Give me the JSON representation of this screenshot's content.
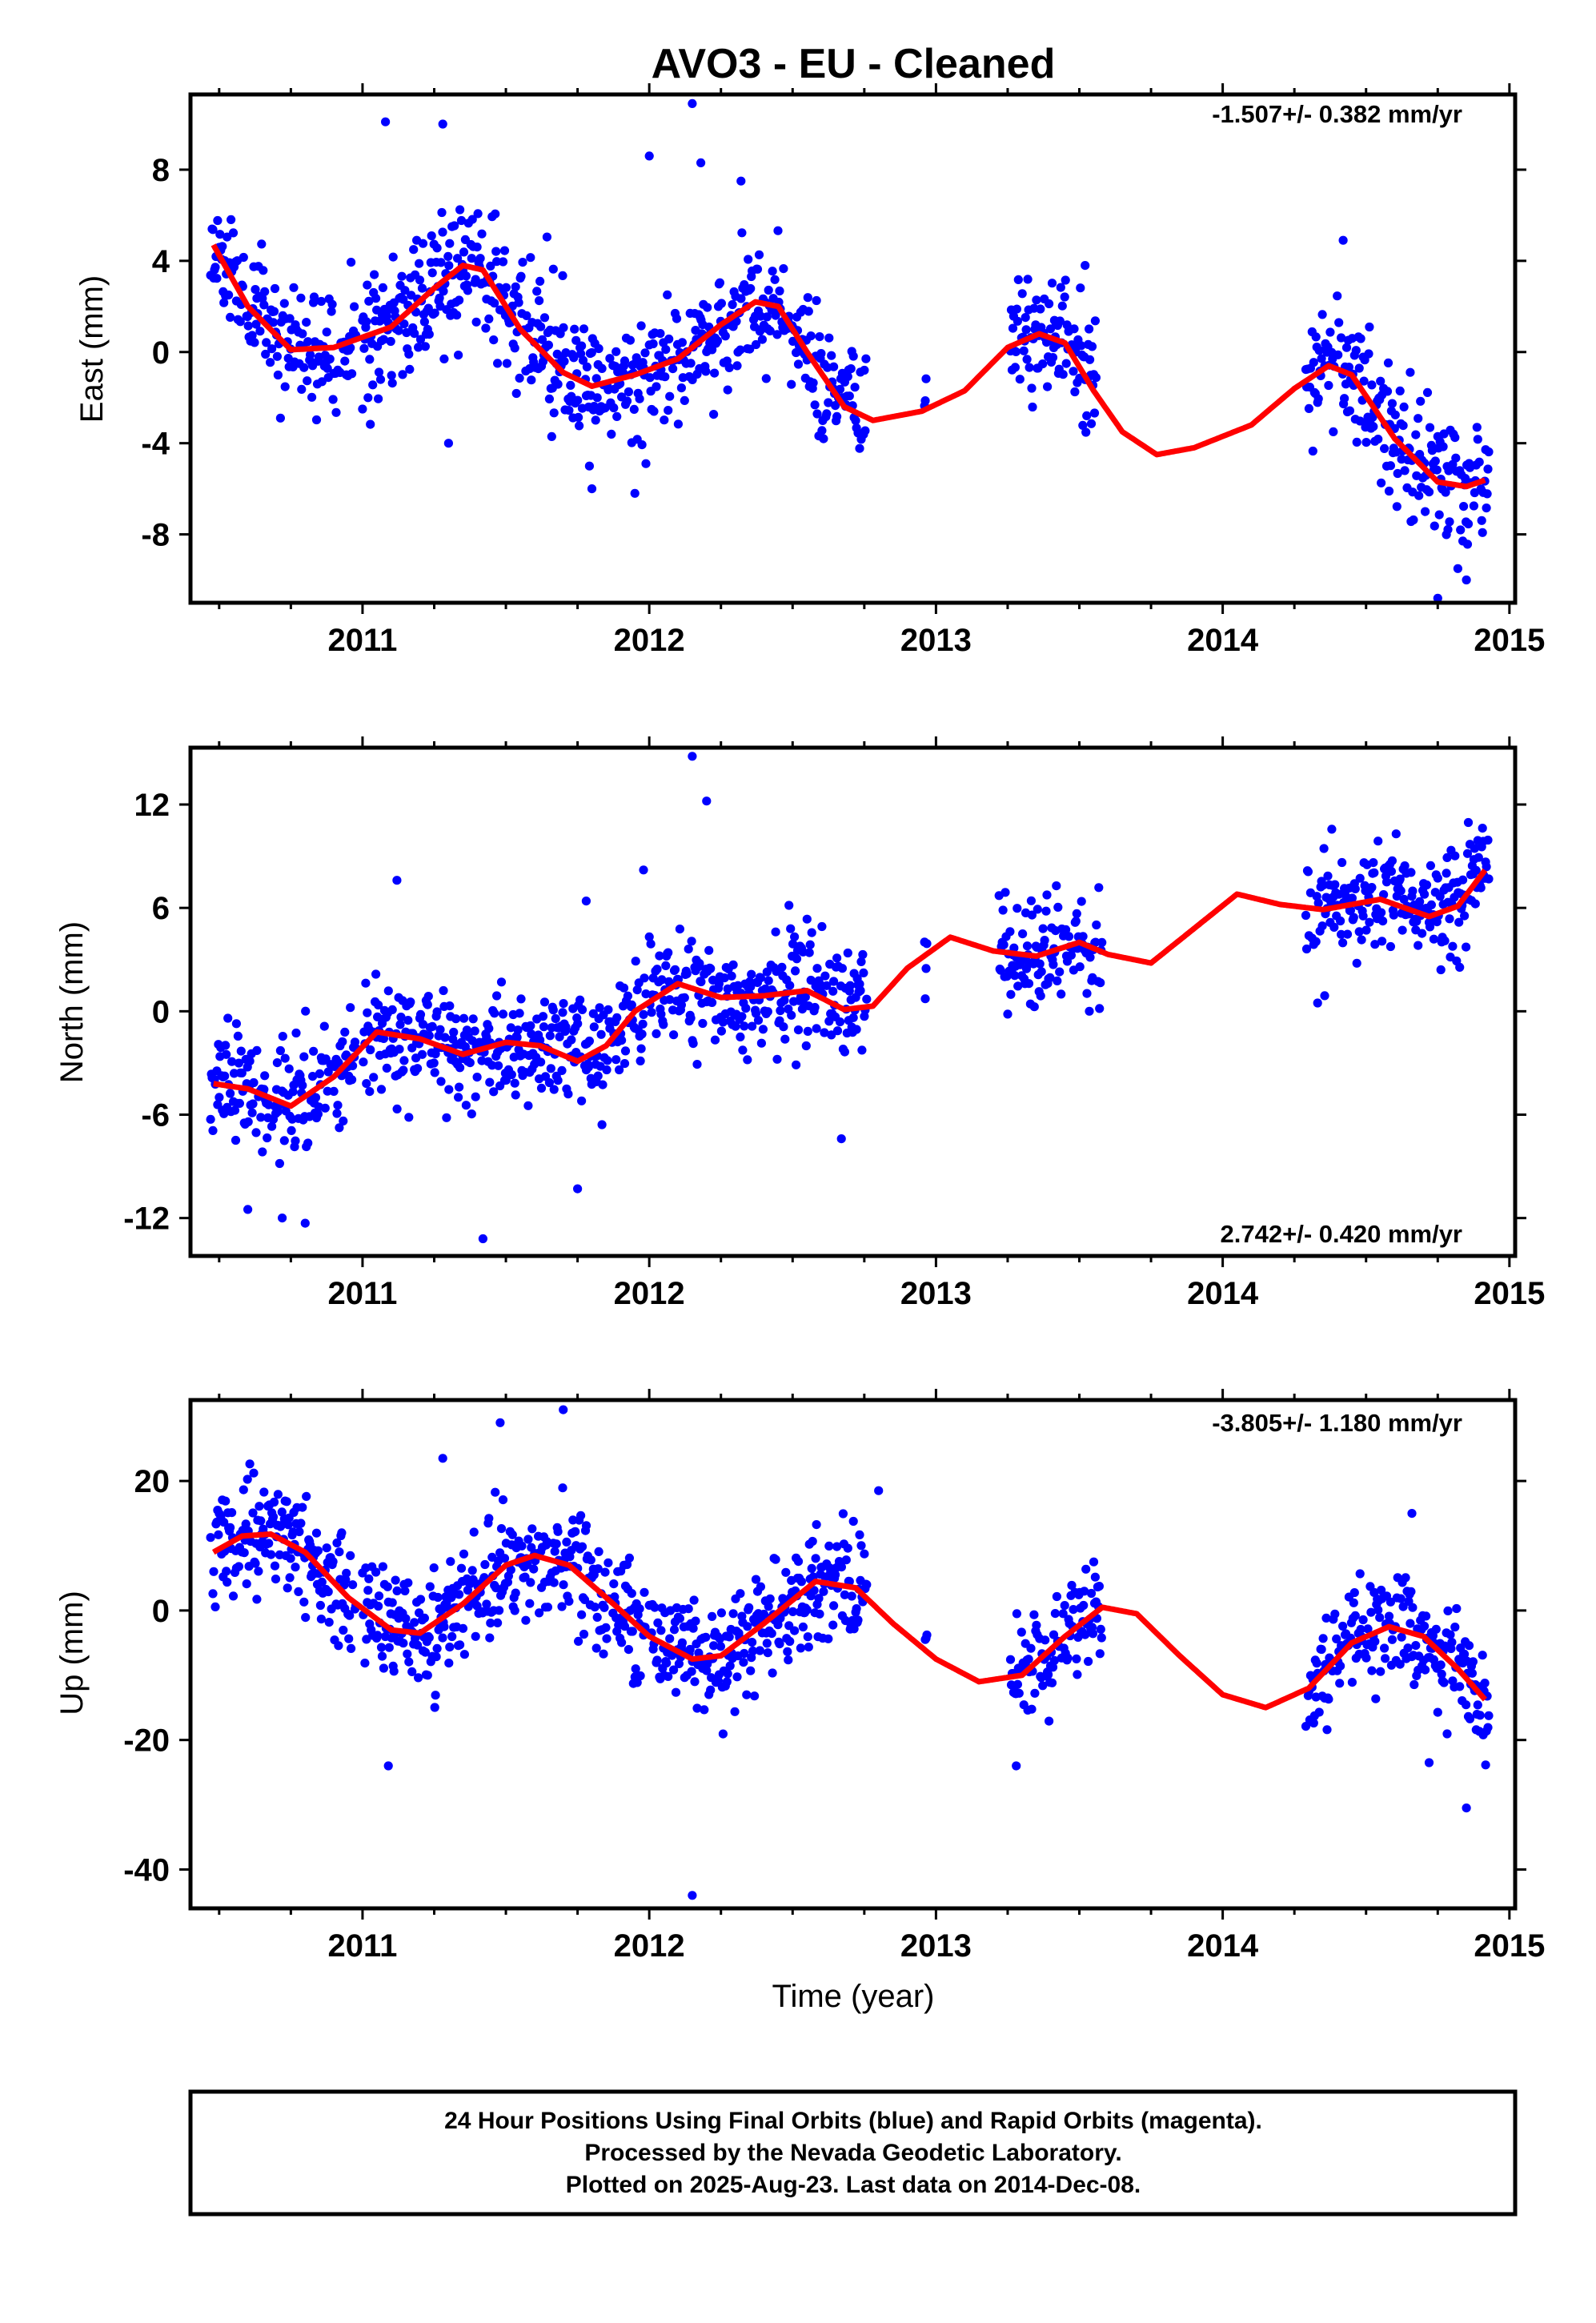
{
  "title": "AVO3  - EU - Cleaned",
  "colors": {
    "points": "#0000ff",
    "fit": "#ff0000",
    "frame": "#000000"
  },
  "footer": {
    "line1": "24 Hour Positions Using Final Orbits (blue) and Rapid Orbits (magenta).",
    "line2": "Processed by the Nevada Geodetic Laboratory.",
    "line3": "Plotted on 2025-Aug-23. Last data on 2014-Dec-08."
  },
  "chart_data": [
    {
      "type": "scatter",
      "ylabel": "East (mm)",
      "xlabel": "",
      "rate": "-1.507+/- 0.382 mm/yr",
      "rate_position": "top-right",
      "xlim": [
        2010.4,
        2015.02
      ],
      "ylim": [
        -11,
        11.3
      ],
      "xticks": [
        "2011",
        "2012",
        "2013",
        "2014",
        "2015"
      ],
      "yticks": [
        "8",
        "4",
        "0",
        "-4",
        "-8"
      ],
      "ytick_values": [
        8,
        4,
        0,
        -4,
        -8
      ],
      "data_segments": [
        [
          2010.47,
          2010.98
        ],
        [
          2011.0,
          2011.99
        ],
        [
          2012.0,
          2012.76
        ],
        [
          2012.96,
          2012.97
        ],
        [
          2013.26,
          2013.56
        ],
        [
          2014.29,
          2014.93
        ]
      ],
      "fit_curve": {
        "x": [
          2010.48,
          2010.6,
          2010.75,
          2010.9,
          2011.1,
          2011.25,
          2011.35,
          2011.42,
          2011.55,
          2011.7,
          2011.8,
          2011.95,
          2012.1,
          2012.25,
          2012.37,
          2012.45,
          2012.55,
          2012.68,
          2012.78,
          2012.95,
          2013.1,
          2013.25,
          2013.36,
          2013.45,
          2013.55,
          2013.65,
          2013.77,
          2013.9,
          2014.1,
          2014.25,
          2014.37,
          2014.45,
          2014.6,
          2014.75,
          2014.85,
          2014.92
        ],
        "y": [
          4.7,
          2.0,
          0.1,
          0.2,
          1.1,
          2.8,
          3.8,
          3.6,
          1.0,
          -0.9,
          -1.5,
          -1.0,
          -0.3,
          1.2,
          2.2,
          2.0,
          0.0,
          -2.4,
          -3.0,
          -2.6,
          -1.7,
          0.2,
          0.8,
          0.4,
          -1.7,
          -3.5,
          -4.5,
          -4.2,
          -3.2,
          -1.6,
          -0.6,
          -1.0,
          -3.8,
          -5.7,
          -5.9,
          -5.6
        ]
      },
      "outliers": {
        "x": [
          2011.08,
          2011.28,
          2012.0,
          2012.15,
          2012.18,
          2011.3,
          2012.32,
          2011.8,
          2011.95,
          2014.42,
          2014.75,
          2014.82,
          2014.85,
          2013.52,
          2011.0
        ],
        "y": [
          10.1,
          10.0,
          8.6,
          10.9,
          8.3,
          -4.0,
          7.5,
          -6.0,
          -6.2,
          4.9,
          -10.8,
          -9.5,
          -10.0,
          3.8,
          -2.5
        ]
      },
      "scatter_sd": 1.4
    },
    {
      "type": "scatter",
      "ylabel": "North (mm)",
      "xlabel": "",
      "rate": "2.742+/- 0.420 mm/yr",
      "rate_position": "bottom-right",
      "xlim": [
        2010.4,
        2015.02
      ],
      "ylim": [
        -14.2,
        15.3
      ],
      "xticks": [
        "2011",
        "2012",
        "2013",
        "2014",
        "2015"
      ],
      "yticks": [
        "12",
        "6",
        "0",
        "-6",
        "-12"
      ],
      "ytick_values": [
        12,
        6,
        0,
        -6,
        -12
      ],
      "data_segments": [
        [
          2010.47,
          2010.98
        ],
        [
          2011.0,
          2011.99
        ],
        [
          2012.0,
          2012.76
        ],
        [
          2012.96,
          2012.97
        ],
        [
          2013.22,
          2013.58
        ],
        [
          2014.29,
          2014.93
        ]
      ],
      "fit_curve": {
        "x": [
          2010.48,
          2010.6,
          2010.75,
          2010.9,
          2011.05,
          2011.2,
          2011.35,
          2011.5,
          2011.62,
          2011.75,
          2011.85,
          2011.95,
          2012.1,
          2012.25,
          2012.4,
          2012.55,
          2012.68,
          2012.78,
          2012.9,
          2013.05,
          2013.2,
          2013.35,
          2013.5,
          2013.6,
          2013.75,
          2013.9,
          2014.05,
          2014.2,
          2014.35,
          2014.55,
          2014.72,
          2014.82,
          2014.92
        ],
        "y": [
          -4.2,
          -4.5,
          -5.5,
          -3.8,
          -1.2,
          -1.6,
          -2.5,
          -1.8,
          -2.0,
          -2.9,
          -2.0,
          0.0,
          1.6,
          0.8,
          0.9,
          1.2,
          0.1,
          0.3,
          2.5,
          4.3,
          3.5,
          3.2,
          4.0,
          3.3,
          2.8,
          4.8,
          6.8,
          6.2,
          5.9,
          6.5,
          5.5,
          6.1,
          8.3
        ]
      },
      "outliers": {
        "x": [
          2012.15,
          2012.2,
          2011.42,
          2010.8,
          2010.72,
          2010.6,
          2011.12,
          2012.67,
          2011.75,
          2011.78,
          2011.98
        ],
        "y": [
          14.8,
          12.2,
          -13.2,
          -12.3,
          -12.0,
          -11.5,
          7.6,
          -7.4,
          -10.3,
          6.4,
          8.2
        ]
      },
      "scatter_sd": 1.6
    },
    {
      "type": "scatter",
      "ylabel": "Up (mm)",
      "xlabel": "Time (year)",
      "rate": "-3.805+/- 1.180 mm/yr",
      "rate_position": "top-right",
      "xlim": [
        2010.4,
        2015.02
      ],
      "ylim": [
        -46,
        32.5
      ],
      "xticks": [
        "2011",
        "2012",
        "2013",
        "2014",
        "2015"
      ],
      "yticks": [
        "20",
        "0",
        "-20",
        "-40"
      ],
      "ytick_values": [
        20,
        0,
        -20,
        -40
      ],
      "data_segments": [
        [
          2010.47,
          2010.98
        ],
        [
          2011.0,
          2011.99
        ],
        [
          2012.0,
          2012.76
        ],
        [
          2012.96,
          2012.97
        ],
        [
          2013.26,
          2013.58
        ],
        [
          2014.29,
          2014.93
        ]
      ],
      "fit_curve": {
        "x": [
          2010.48,
          2010.58,
          2010.68,
          2010.8,
          2010.95,
          2011.1,
          2011.2,
          2011.35,
          2011.5,
          2011.6,
          2011.72,
          2011.85,
          2012.0,
          2012.15,
          2012.25,
          2012.4,
          2012.58,
          2012.72,
          2012.85,
          2013.0,
          2013.15,
          2013.3,
          2013.45,
          2013.58,
          2013.7,
          2013.85,
          2014.0,
          2014.15,
          2014.3,
          2014.45,
          2014.58,
          2014.7,
          2014.82,
          2014.92
        ],
        "y": [
          9.0,
          11.5,
          11.8,
          9.0,
          2.0,
          -3.0,
          -3.5,
          1.0,
          7.0,
          8.5,
          7.0,
          2.0,
          -4.0,
          -7.5,
          -7.0,
          -2.0,
          4.5,
          3.5,
          -2.0,
          -7.5,
          -11.0,
          -10.0,
          -4.0,
          0.5,
          -0.5,
          -7.0,
          -13.0,
          -15.0,
          -12.0,
          -5.0,
          -2.5,
          -4.0,
          -9.0,
          -14.0
        ]
      },
      "outliers": {
        "x": [
          2012.15,
          2011.7,
          2011.48,
          2011.28,
          2011.09,
          2013.28,
          2014.85,
          2014.72,
          2014.66,
          2012.8
        ],
        "y": [
          -44.0,
          31.0,
          29.0,
          23.5,
          -24.0,
          -24.0,
          -30.5,
          -23.5,
          15.0,
          18.5
        ]
      },
      "scatter_sd": 4.2
    }
  ]
}
